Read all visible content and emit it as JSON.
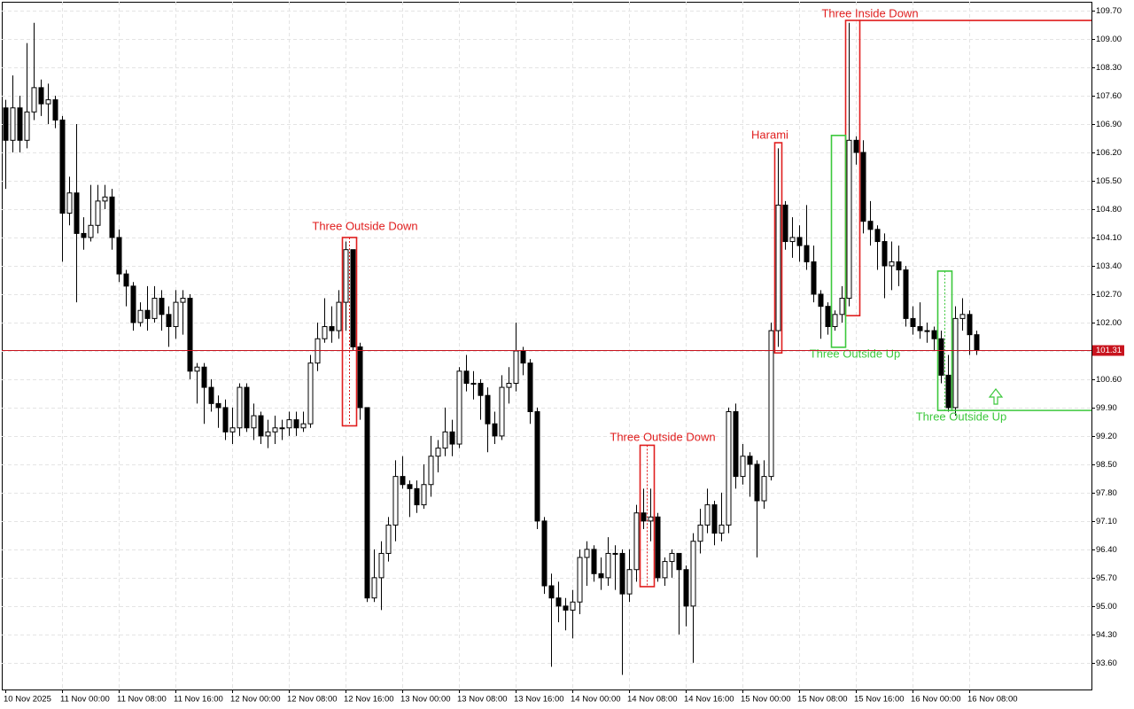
{
  "chart_data": {
    "type": "candlestick",
    "categories": [
      "10 Nov 2025",
      null,
      null,
      null,
      null,
      null,
      null,
      null,
      "11 Nov 00:00",
      null,
      null,
      null,
      null,
      null,
      null,
      null,
      "11 Nov 08:00",
      null,
      null,
      null,
      null,
      null,
      null,
      null,
      "11 Nov 16:00",
      null,
      null,
      null,
      null,
      null,
      null,
      null,
      "12 Nov 00:00",
      null,
      null,
      null,
      null,
      null,
      null,
      null,
      "12 Nov 08:00",
      null,
      null,
      null,
      null,
      null,
      null,
      null,
      "12 Nov 16:00",
      null,
      null,
      null,
      null,
      null,
      null,
      null,
      "13 Nov 00:00",
      null,
      null,
      null,
      null,
      null,
      null,
      null,
      "13 Nov 08:00",
      null,
      null,
      null,
      null,
      null,
      null,
      null,
      "13 Nov 16:00",
      null,
      null,
      null,
      null,
      null,
      null,
      null,
      "14 Nov 00:00",
      null,
      null,
      null,
      null,
      null,
      null,
      null,
      "14 Nov 08:00",
      null,
      null,
      null,
      null,
      null,
      null,
      null,
      "14 Nov 16:00",
      null,
      null,
      null,
      null,
      null,
      null,
      null,
      "15 Nov 00:00",
      null,
      null,
      null,
      null,
      null,
      null,
      null,
      "15 Nov 08:00",
      null,
      null,
      null,
      null,
      null,
      null,
      null,
      "15 Nov 16:00",
      null,
      null,
      null,
      null,
      null,
      null,
      null,
      "16 Nov 00:00",
      null,
      null,
      null,
      null,
      null,
      null,
      null,
      "16 Nov 08:00",
      null
    ],
    "open": [
      107.3,
      106.5,
      107.3,
      106.5,
      107.2,
      107.8,
      107.4,
      107.5,
      107.0,
      104.7,
      105.2,
      104.2,
      104.1,
      104.4,
      105.0,
      105.1,
      104.1,
      103.2,
      102.9,
      102.0,
      102.3,
      102.1,
      102.6,
      102.2,
      101.9,
      102.5,
      102.6,
      100.8,
      100.9,
      100.4,
      100.0,
      99.9,
      99.3,
      99.4,
      100.4,
      99.4,
      99.7,
      99.2,
      99.3,
      99.4,
      99.4,
      99.6,
      99.4,
      99.5,
      101.0,
      101.6,
      101.9,
      101.8,
      102.5,
      103.8,
      101.4,
      99.9,
      95.2,
      95.7,
      96.3,
      97.0,
      98.2,
      98.0,
      97.9,
      97.5,
      98.0,
      98.7,
      98.9,
      99.3,
      99.0,
      100.8,
      100.5,
      100.5,
      100.2,
      99.5,
      99.2,
      100.4,
      100.5,
      101.3,
      101.0,
      99.8,
      97.1,
      95.5,
      95.2,
      95.0,
      94.9,
      95.1,
      96.2,
      96.4,
      95.8,
      95.7,
      96.3,
      96.3,
      95.3,
      95.9,
      97.3,
      97.1,
      97.2,
      95.7,
      96.1,
      96.3,
      95.9,
      95.0,
      96.6,
      97.0,
      97.5,
      96.8,
      97.0,
      99.8,
      98.2,
      98.7,
      98.5,
      97.6,
      98.2,
      101.8,
      104.9,
      104.0,
      104.1,
      103.9,
      103.5,
      102.7,
      102.4,
      101.9,
      102.2,
      102.6,
      106.5,
      106.2,
      104.5,
      104.3,
      104.0,
      103.4,
      103.5,
      103.3,
      102.1,
      101.9,
      101.8,
      101.8,
      101.6,
      100.7,
      99.9,
      102.1,
      102.2,
      101.7
    ],
    "high": [
      107.5,
      108.1,
      107.6,
      108.9,
      109.4,
      108.0,
      107.9,
      107.6,
      107.1,
      105.6,
      106.9,
      104.6,
      105.4,
      105.4,
      105.4,
      105.3,
      104.3,
      103.3,
      103.0,
      102.5,
      102.9,
      102.9,
      102.8,
      102.4,
      102.8,
      102.8,
      102.7,
      101.0,
      101.0,
      100.6,
      100.2,
      100.1,
      99.9,
      100.5,
      100.5,
      100.0,
      99.8,
      99.6,
      99.7,
      99.6,
      99.8,
      99.8,
      99.8,
      101.2,
      102.0,
      102.6,
      102.4,
      102.8,
      104.0,
      103.8,
      101.5,
      99.9,
      96.4,
      96.6,
      97.2,
      98.6,
      98.7,
      98.1,
      98.1,
      98.5,
      99.2,
      99.1,
      99.9,
      99.6,
      100.9,
      101.2,
      100.8,
      100.6,
      100.4,
      99.8,
      100.7,
      100.9,
      102.0,
      101.4,
      101.1,
      99.9,
      97.2,
      95.8,
      95.6,
      95.2,
      95.4,
      96.4,
      96.6,
      96.5,
      96.2,
      96.7,
      96.5,
      96.4,
      96.4,
      97.5,
      97.9,
      97.9,
      97.3,
      96.2,
      96.4,
      96.3,
      96.0,
      96.8,
      97.4,
      97.9,
      97.6,
      97.8,
      99.9,
      100.0,
      99.0,
      98.8,
      98.6,
      98.6,
      102.0,
      106.3,
      105.0,
      104.6,
      104.4,
      104.9,
      103.9,
      102.8,
      102.5,
      102.3,
      102.9,
      109.4,
      106.6,
      106.5,
      105.0,
      104.4,
      104.2,
      104.0,
      103.9,
      103.4,
      102.4,
      102.5,
      102.0,
      101.9,
      101.8,
      101.2,
      102.4,
      102.6,
      102.3,
      101.8
    ],
    "low": [
      105.3,
      106.2,
      106.2,
      106.3,
      107.0,
      107.1,
      106.9,
      106.8,
      103.5,
      104.4,
      102.5,
      103.8,
      104.0,
      104.2,
      104.8,
      103.8,
      103.0,
      102.4,
      101.8,
      101.9,
      101.8,
      102.0,
      101.8,
      101.4,
      101.6,
      101.7,
      100.6,
      100.0,
      99.5,
      99.8,
      99.4,
      99.1,
      99.0,
      99.2,
      99.3,
      99.1,
      99.0,
      98.9,
      99.0,
      99.1,
      99.2,
      99.2,
      99.3,
      99.4,
      100.8,
      101.5,
      101.5,
      101.6,
      101.8,
      101.3,
      99.6,
      95.1,
      95.1,
      94.9,
      96.1,
      96.6,
      97.9,
      97.2,
      97.3,
      97.4,
      97.7,
      98.3,
      98.7,
      98.7,
      98.9,
      100.3,
      100.1,
      99.6,
      98.8,
      99.0,
      99.1,
      100.0,
      100.3,
      100.7,
      99.5,
      96.9,
      95.3,
      93.5,
      94.6,
      94.4,
      94.2,
      94.8,
      95.5,
      95.6,
      95.4,
      95.5,
      95.4,
      93.3,
      95.1,
      95.6,
      96.9,
      96.6,
      95.6,
      95.5,
      95.7,
      94.3,
      94.5,
      93.6,
      96.3,
      96.8,
      96.5,
      96.6,
      96.8,
      97.9,
      98.0,
      97.7,
      96.2,
      97.4,
      98.1,
      101.4,
      103.8,
      103.6,
      103.5,
      103.3,
      102.5,
      101.6,
      101.7,
      101.8,
      102.0,
      102.4,
      105.9,
      104.2,
      103.9,
      103.3,
      102.6,
      102.8,
      102.9,
      101.9,
      101.7,
      101.6,
      101.5,
      101.3,
      100.5,
      99.8,
      99.7,
      101.8,
      101.2,
      101.2
    ],
    "close": [
      106.5,
      107.3,
      106.5,
      107.2,
      107.8,
      107.4,
      107.5,
      107.0,
      104.7,
      105.2,
      104.2,
      104.1,
      104.4,
      105.0,
      105.1,
      104.1,
      103.2,
      102.9,
      102.0,
      102.3,
      102.1,
      102.6,
      102.2,
      101.9,
      102.5,
      102.6,
      100.8,
      100.9,
      100.4,
      100.0,
      99.9,
      99.3,
      99.4,
      100.4,
      99.4,
      99.7,
      99.2,
      99.3,
      99.4,
      99.4,
      99.6,
      99.4,
      99.5,
      101.0,
      101.6,
      101.9,
      101.8,
      102.5,
      103.8,
      101.4,
      99.9,
      95.2,
      95.7,
      96.3,
      97.0,
      98.2,
      98.0,
      97.9,
      97.5,
      98.0,
      98.7,
      98.9,
      99.3,
      99.0,
      100.8,
      100.5,
      100.5,
      100.2,
      99.5,
      99.2,
      100.4,
      100.5,
      101.3,
      101.0,
      99.8,
      97.1,
      95.5,
      95.2,
      95.0,
      94.9,
      95.1,
      96.2,
      96.4,
      95.8,
      95.7,
      96.3,
      96.3,
      95.3,
      95.9,
      97.3,
      97.1,
      97.2,
      95.7,
      96.1,
      96.3,
      95.9,
      95.0,
      96.6,
      97.0,
      97.5,
      96.8,
      97.0,
      99.8,
      98.2,
      98.7,
      98.5,
      97.6,
      98.2,
      101.8,
      104.9,
      104.0,
      104.1,
      103.9,
      103.5,
      102.7,
      102.4,
      101.9,
      102.2,
      102.6,
      106.5,
      106.2,
      104.5,
      104.3,
      104.0,
      103.4,
      103.5,
      103.3,
      102.1,
      101.9,
      101.8,
      101.8,
      101.6,
      100.7,
      99.9,
      102.1,
      102.2,
      101.7,
      101.31
    ],
    "ylim": [
      92.94,
      109.92
    ],
    "yticks": [
      {
        "value": 93.6,
        "label": "93.60"
      },
      {
        "value": 94.3,
        "label": "94.30"
      },
      {
        "value": 95.0,
        "label": "95.00"
      },
      {
        "value": 95.7,
        "label": "95.70"
      },
      {
        "value": 96.4,
        "label": "96.40"
      },
      {
        "value": 97.1,
        "label": "97.10"
      },
      {
        "value": 97.8,
        "label": "97.80"
      },
      {
        "value": 98.5,
        "label": "98.50"
      },
      {
        "value": 99.2,
        "label": "99.20"
      },
      {
        "value": 99.9,
        "label": "99.90"
      },
      {
        "value": 100.6,
        "label": "100.60"
      },
      {
        "value": 101.3,
        "label": "101.30"
      },
      {
        "value": 102.0,
        "label": "102.00"
      },
      {
        "value": 102.7,
        "label": "102.70"
      },
      {
        "value": 103.4,
        "label": "103.40"
      },
      {
        "value": 104.1,
        "label": "104.10"
      },
      {
        "value": 104.8,
        "label": "104.80"
      },
      {
        "value": 105.5,
        "label": "105.50"
      },
      {
        "value": 106.2,
        "label": "106.20"
      },
      {
        "value": 106.9,
        "label": "106.90"
      },
      {
        "value": 107.6,
        "label": "107.60"
      },
      {
        "value": 108.3,
        "label": "108.30"
      },
      {
        "value": 109.0,
        "label": "109.00"
      },
      {
        "value": 109.7,
        "label": "109.70"
      }
    ],
    "grid": true,
    "bull_color": "#ffffff",
    "bear_color": "#000000",
    "last_price": {
      "value": 101.31,
      "label": "101.31",
      "color": "#c8141e"
    },
    "annotations": [
      {
        "text": "Three Outside Down",
        "color": "#e01e1e",
        "high": 104.1,
        "low": 99.45
      },
      {
        "text": "Harami",
        "color": "#e01e1e",
        "high": 106.44,
        "low": 101.25
      },
      {
        "text": "Three Outside Down",
        "color": "#e01e1e",
        "high": 98.97,
        "low": 95.48
      },
      {
        "text": "Three Inside Down",
        "color": "#e01e1e",
        "high": 109.46,
        "low": 102.17
      },
      {
        "text": "Three Outside Up",
        "color": "#3cc83c",
        "high": 106.62,
        "low": 101.39
      },
      {
        "text": "Three Outside Up",
        "color": "#3cc83c",
        "high": 103.27,
        "low": 99.83
      }
    ]
  }
}
